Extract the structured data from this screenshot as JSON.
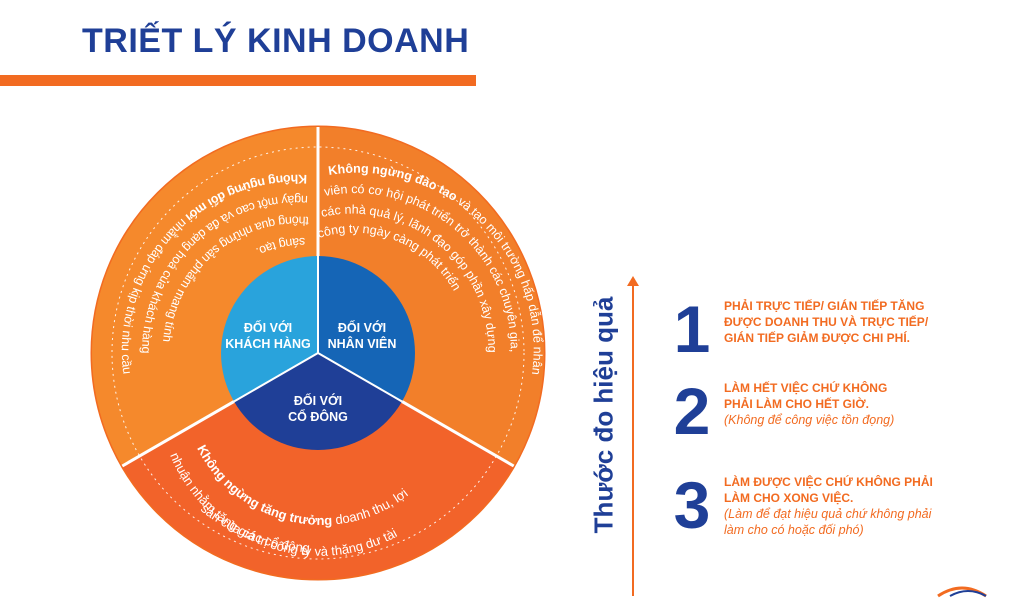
{
  "title": "TRIẾT LÝ KINH DOANH",
  "colors": {
    "orange": "#f26b21",
    "orange_light": "#f5892c",
    "light_blue": "#29a3dc",
    "mid_blue": "#1565b6",
    "navy": "#1f3f97"
  },
  "wheel": {
    "inner": {
      "customers": [
        "ĐỐI VỚI",
        "KHÁCH HÀNG"
      ],
      "employees": [
        "ĐỐI VỚI",
        "NHÂN VIÊN"
      ],
      "shareholders": [
        "ĐỐI VỚI",
        "CỔ ĐÔNG"
      ]
    },
    "outer": {
      "customers": {
        "lines": [
          "Không ngừng đổi mới nhằm đáp ứng kịp thời nhu cầu",
          "ngày một cao và đa dạng hoá của khách hàng",
          "thông qua những sản phẩm mang tính",
          "sáng tạo."
        ],
        "bold": "Không ngừng đổi mới"
      },
      "employees": {
        "lines": [
          "Không ngừng đào tạo và tạo môi trường hấp dẫn để nhân",
          "viên có cơ hội phát triển trở thành các chuyên gia,",
          "các nhà quả lý, lãnh đạo góp phần xây dựng",
          "công ty ngày càng phát triển"
        ],
        "bold": "Không ngừng đào tạo"
      },
      "shareholders": {
        "lines": [
          "Không ngừng tăng trưởng doanh thu, lợi",
          "nhuận nhằm tăng giá trị công ty và thặng dư tài",
          "sản của các cổ đông"
        ],
        "bold": "Không ngừng tăng trưởng"
      }
    }
  },
  "measure": {
    "label": "Thước đo hiệu quả",
    "items": [
      {
        "num": "1",
        "lines": [
          "PHẢI TRỰC TIẾP/ GIÁN TIẾP TĂNG",
          "ĐƯỢC DOANH THU VÀ TRỰC TIẾP/",
          "GIÁN TIẾP GIẢM ĐƯỢC CHI PHÍ."
        ],
        "note": ""
      },
      {
        "num": "2",
        "lines": [
          "LÀM HẾT VIỆC CHỨ KHÔNG",
          "PHẢI LÀM CHO HẾT GIỜ."
        ],
        "note": "(Không để công việc tồn đọng)"
      },
      {
        "num": "3",
        "lines": [
          "LÀM ĐƯỢC VIỆC CHỨ KHÔNG PHẢI",
          "LÀM CHO XONG VIỆC."
        ],
        "note": "(Làm để đạt hiệu quả chứ không phải\nlàm cho có hoặc đối phó)"
      }
    ]
  }
}
